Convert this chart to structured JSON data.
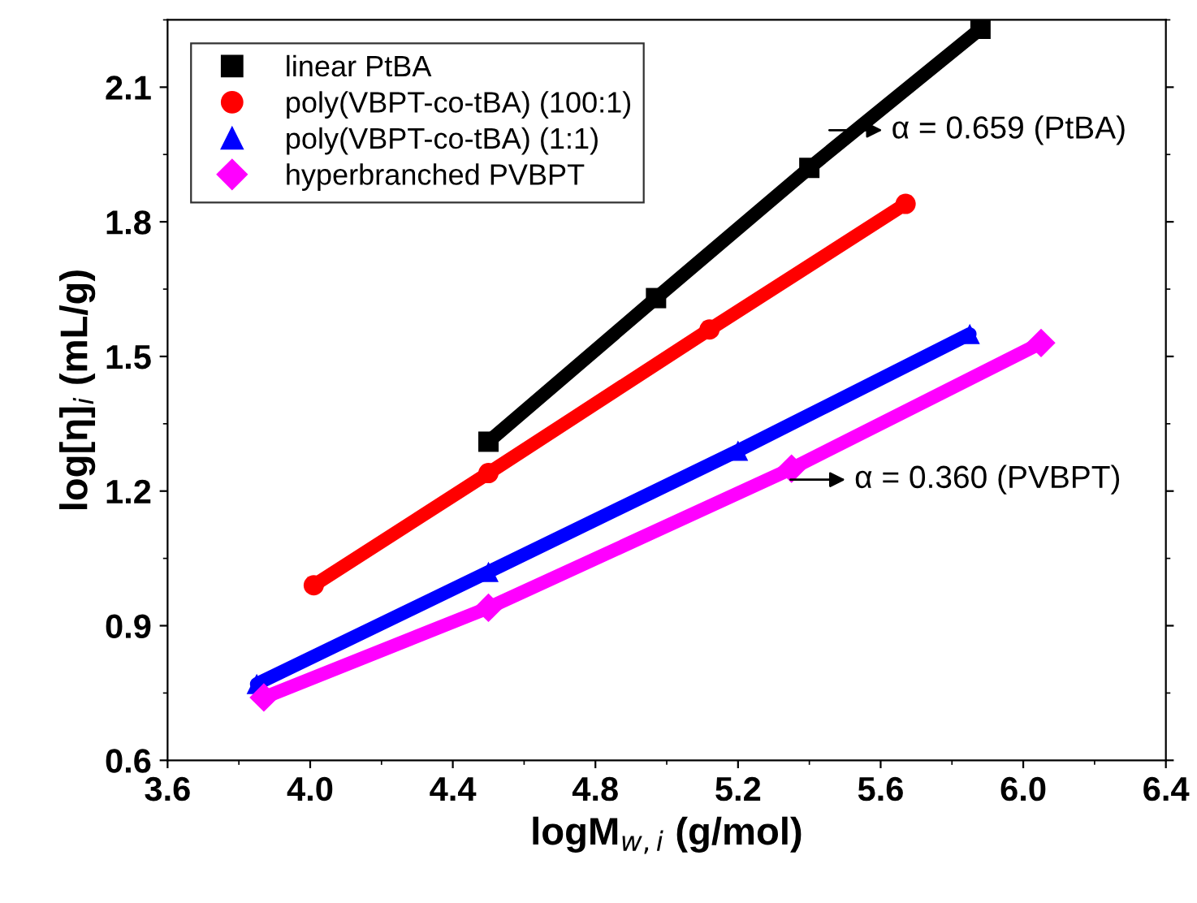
{
  "chart_data": {
    "type": "line",
    "xlabel": "logM$_{w,i}$ (g/mol)",
    "ylabel": "log[η]$_{i}$ (mL/g)",
    "xlim": [
      3.6,
      6.4
    ],
    "xticks": [
      {
        "value": 3.6,
        "label": "3.6"
      },
      {
        "value": 4.0,
        "label": "4.0"
      },
      {
        "value": 4.4,
        "label": "4.4"
      },
      {
        "value": 4.8,
        "label": "4.8"
      },
      {
        "value": 5.2,
        "label": "5.2"
      },
      {
        "value": 5.6,
        "label": "5.6"
      },
      {
        "value": 6.0,
        "label": "6.0"
      },
      {
        "value": 6.4,
        "label": "6.4"
      }
    ],
    "ylim": [
      0.6,
      2.25
    ],
    "yticks": [
      0.6,
      0.9,
      1.2,
      1.5,
      1.8,
      2.1
    ],
    "grid": false,
    "legend": "top left",
    "series": [
      {
        "name": "linear PtBA",
        "color": "#000000",
        "marker": "square",
        "x": [
          4.5,
          4.97,
          5.4,
          5.88
        ],
        "values": [
          1.31,
          1.63,
          1.92,
          2.23
        ]
      },
      {
        "name": "poly(VBPT-co-tBA) (100:1)",
        "color": "#ff0000",
        "marker": "circle",
        "x": [
          4.01,
          4.5,
          5.12,
          5.67
        ],
        "values": [
          0.99,
          1.24,
          1.56,
          1.84
        ]
      },
      {
        "name": "poly(VBPT-co-tBA) (1:1)",
        "color": "#0000ff",
        "marker": "triangle",
        "x": [
          3.85,
          4.5,
          5.2,
          5.85
        ],
        "values": [
          0.77,
          1.02,
          1.29,
          1.55
        ]
      },
      {
        "name": "hyperbranched PVBPT",
        "color": "#ff00ff",
        "marker": "diamond",
        "x": [
          3.87,
          4.5,
          5.35,
          6.05
        ],
        "values": [
          0.74,
          0.94,
          1.25,
          1.53
        ]
      }
    ],
    "annotations": [
      "α = 0.659 (PtBA)",
      "α = 0.360 (PVBPT)"
    ]
  }
}
